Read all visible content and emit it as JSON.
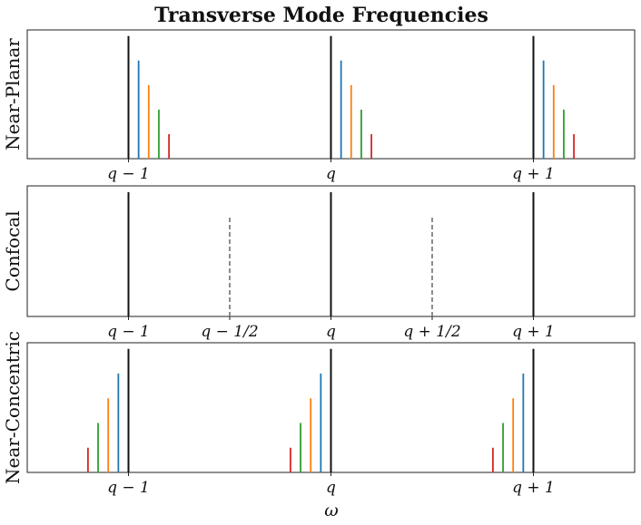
{
  "title": "Transverse Mode Frequencies",
  "xlabel": "ω",
  "colors": {
    "longitudinal": "#111111",
    "mode1": "#1f77b4",
    "mode2": "#ff7f0e",
    "mode3": "#2ca02c",
    "mode4": "#d62728",
    "half": "#808080"
  },
  "chart_data": [
    {
      "type": "stem",
      "panel": "near-planar",
      "ylabel": "Near-Planar",
      "xlim": [
        -1.5,
        1.5
      ],
      "xticks": [
        -1,
        0,
        1
      ],
      "xtick_labels": [
        "q − 1",
        "q",
        "q + 1"
      ],
      "ylim": [
        0,
        1.05
      ],
      "series": [
        {
          "x": [
            -1,
            0,
            1
          ],
          "height": 1.0,
          "color": "longitudinal",
          "style": "solid"
        },
        {
          "x": [
            -0.95,
            0.05,
            1.05
          ],
          "height": 0.8,
          "color": "mode1",
          "style": "solid"
        },
        {
          "x": [
            -0.9,
            0.1,
            1.1
          ],
          "height": 0.6,
          "color": "mode2",
          "style": "solid"
        },
        {
          "x": [
            -0.85,
            0.15,
            1.15
          ],
          "height": 0.4,
          "color": "mode3",
          "style": "solid"
        },
        {
          "x": [
            -0.8,
            0.2,
            1.2
          ],
          "height": 0.2,
          "color": "mode4",
          "style": "solid"
        }
      ]
    },
    {
      "type": "stem",
      "panel": "confocal",
      "ylabel": "Confocal",
      "xlim": [
        -1.5,
        1.5
      ],
      "xticks": [
        -1,
        -0.5,
        0,
        0.5,
        1
      ],
      "xtick_labels": [
        "q − 1",
        "q − 1/2",
        "q",
        "q + 1/2",
        "q + 1"
      ],
      "ylim": [
        0,
        1.05
      ],
      "series": [
        {
          "x": [
            -1,
            0,
            1
          ],
          "height": 1.0,
          "color": "longitudinal",
          "style": "solid"
        },
        {
          "x": [
            -0.5,
            0.5
          ],
          "height": 0.8,
          "color": "half",
          "style": "dashed"
        }
      ]
    },
    {
      "type": "stem",
      "panel": "near-concentric",
      "ylabel": "Near-Concentric",
      "xlim": [
        -1.5,
        1.5
      ],
      "xticks": [
        -1,
        0,
        1
      ],
      "xtick_labels": [
        "q − 1",
        "q",
        "q + 1"
      ],
      "ylim": [
        0,
        1.05
      ],
      "series": [
        {
          "x": [
            -1,
            0,
            1
          ],
          "height": 1.0,
          "color": "longitudinal",
          "style": "solid"
        },
        {
          "x": [
            -1.05,
            -0.05,
            0.95
          ],
          "height": 0.8,
          "color": "mode1",
          "style": "solid"
        },
        {
          "x": [
            -1.1,
            -0.1,
            0.9
          ],
          "height": 0.6,
          "color": "mode2",
          "style": "solid"
        },
        {
          "x": [
            -1.15,
            -0.15,
            0.85
          ],
          "height": 0.4,
          "color": "mode3",
          "style": "solid"
        },
        {
          "x": [
            -1.2,
            -0.2,
            0.8
          ],
          "height": 0.2,
          "color": "mode4",
          "style": "solid"
        }
      ]
    }
  ]
}
